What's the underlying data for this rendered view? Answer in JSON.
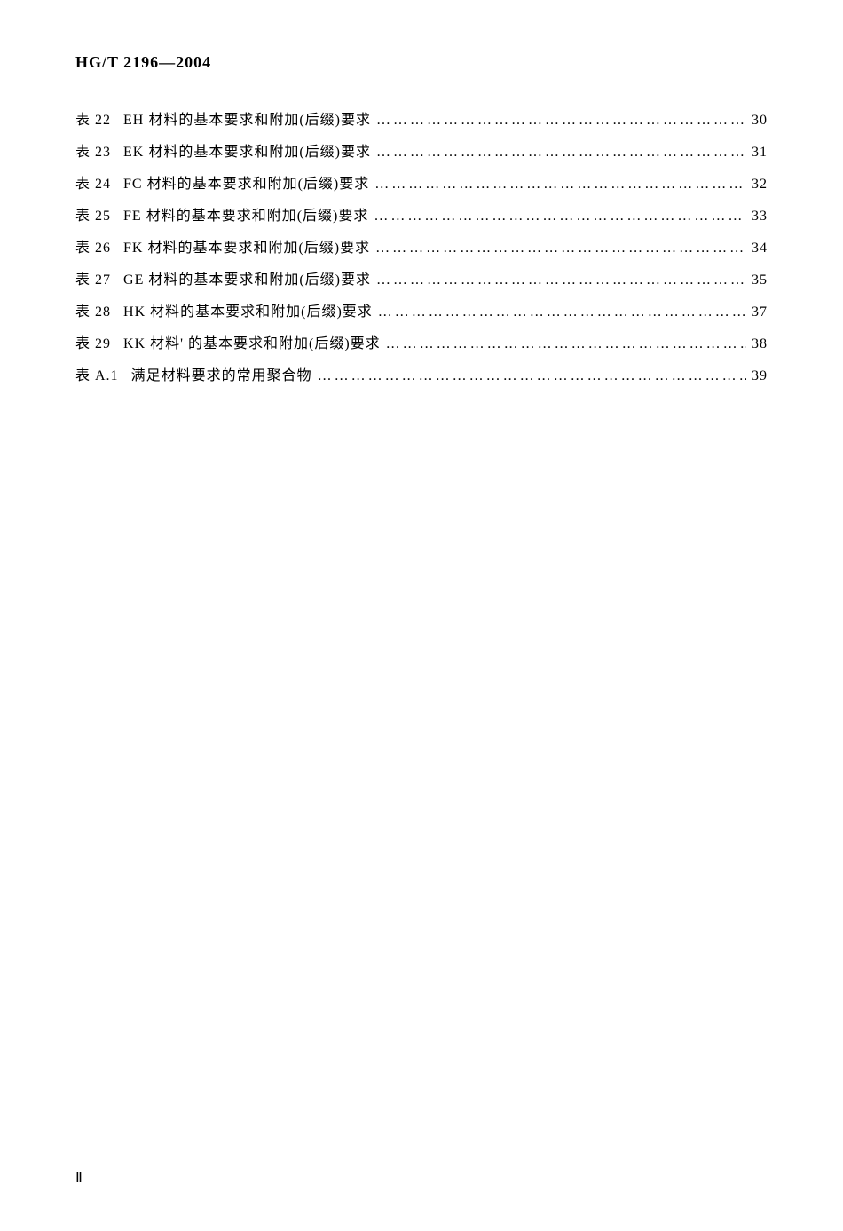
{
  "document": {
    "standard_code": "HG/T 2196—2004",
    "page_number": "Ⅱ"
  },
  "toc": {
    "entries": [
      {
        "label": "表 22",
        "title": "EH 材料的基本要求和附加(后缀)要求",
        "page": "30"
      },
      {
        "label": "表 23",
        "title": "EK 材料的基本要求和附加(后缀)要求",
        "page": "31"
      },
      {
        "label": "表 24",
        "title": "FC 材料的基本要求和附加(后缀)要求",
        "page": "32"
      },
      {
        "label": "表 25",
        "title": "FE 材料的基本要求和附加(后缀)要求",
        "page": "33"
      },
      {
        "label": "表 26",
        "title": "FK 材料的基本要求和附加(后缀)要求",
        "page": "34"
      },
      {
        "label": "表 27",
        "title": "GE 材料的基本要求和附加(后缀)要求",
        "page": "35"
      },
      {
        "label": "表 28",
        "title": "HK 材料的基本要求和附加(后缀)要求",
        "page": "37"
      },
      {
        "label": "表 29",
        "title": "KK 材料' 的基本要求和附加(后缀)要求",
        "page": "38"
      },
      {
        "label": "表 A.1",
        "title": "满足材料要求的常用聚合物",
        "page": "39"
      }
    ]
  },
  "style": {
    "background_color": "#ffffff",
    "text_color": "#000000",
    "header_fontsize": 18,
    "body_fontsize": 16,
    "line_spacing": 12,
    "font_family": "SimSun"
  }
}
